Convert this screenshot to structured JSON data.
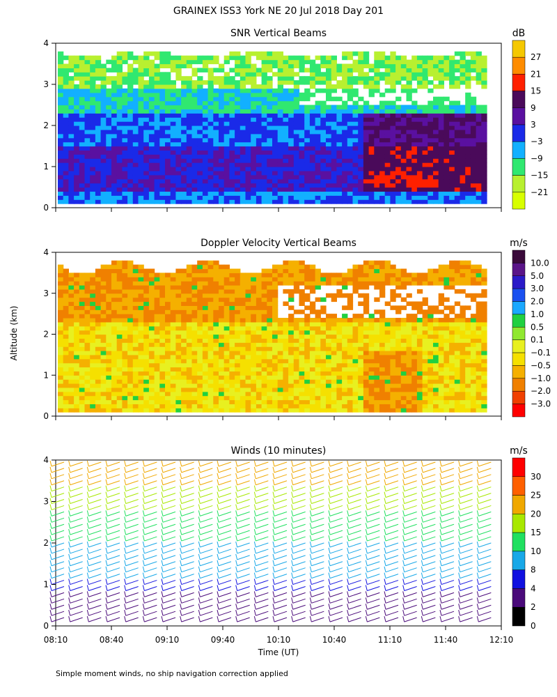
{
  "figure": {
    "title": "GRAINEX ISS3 York NE  20 Jul 2018 Day 201",
    "shared_ylabel": "Altitude (km)",
    "xlabel": "Time (UT)",
    "footnote": "Simple moment winds, no ship navigation correction applied",
    "time_ticks": [
      "08:10",
      "08:40",
      "09:10",
      "09:40",
      "10:10",
      "10:40",
      "11:10",
      "11:40",
      "12:10"
    ]
  },
  "chart_data": [
    {
      "type": "heatmap",
      "title": "SNR Vertical Beams",
      "units": "dB",
      "y_ticks": [
        "0",
        "1",
        "2",
        "3",
        "4"
      ],
      "ylim": [
        0,
        4
      ],
      "x_range": [
        "08:10",
        "12:10"
      ],
      "colorbar": {
        "labels": [
          "27",
          "21",
          "15",
          "9",
          "3",
          "−3",
          "−9",
          "−15",
          "−21"
        ],
        "colors": [
          "#f5c800",
          "#ff8c00",
          "#ff2000",
          "#4a0a5a",
          "#5a10a0",
          "#1a2ae8",
          "#12b0ff",
          "#30e870",
          "#b8f030",
          "#d8ff00"
        ]
      }
    },
    {
      "type": "heatmap",
      "title": "Doppler Velocity Vertical Beams",
      "units": "m/s",
      "y_ticks": [
        "0",
        "1",
        "2",
        "3",
        "4"
      ],
      "ylim": [
        0,
        4
      ],
      "x_range": [
        "08:10",
        "12:10"
      ],
      "colorbar": {
        "labels": [
          "10.0",
          "5.0",
          "3.0",
          "2.0",
          "1.0",
          "0.5",
          "0.1",
          "−0.1",
          "−0.5",
          "−1.0",
          "−2.0",
          "−3.0"
        ],
        "colors": [
          "#3a0a3a",
          "#5a1488",
          "#2a1ac8",
          "#1a50f0",
          "#1aa8ff",
          "#20d040",
          "#90e830",
          "#e8f020",
          "#f5e000",
          "#f5b000",
          "#f08000",
          "#f04000",
          "#ff0000"
        ]
      }
    },
    {
      "type": "scatter",
      "title": "Winds (10 minutes)",
      "units": "m/s",
      "y_ticks": [
        "0",
        "1",
        "2",
        "3",
        "4"
      ],
      "ylim": [
        0,
        4
      ],
      "x_range": [
        "08:10",
        "12:10"
      ],
      "colorbar": {
        "labels": [
          "30",
          "25",
          "20",
          "15",
          "10",
          "8",
          "4",
          "2",
          "0"
        ],
        "colors": [
          "#ff0000",
          "#ff6000",
          "#f0a800",
          "#a8e800",
          "#20e060",
          "#18a8e8",
          "#1010e0",
          "#4a0a7a",
          "#000000"
        ]
      },
      "profile_times": [
        "08:10",
        "08:20",
        "08:30",
        "08:40",
        "08:50",
        "09:00",
        "09:10",
        "09:20",
        "09:30",
        "09:40",
        "09:50",
        "10:00",
        "10:10",
        "10:20",
        "10:30",
        "10:40",
        "10:50",
        "11:00",
        "11:10",
        "11:20",
        "11:30",
        "11:40",
        "11:50",
        "12:00",
        "12:10"
      ]
    }
  ]
}
